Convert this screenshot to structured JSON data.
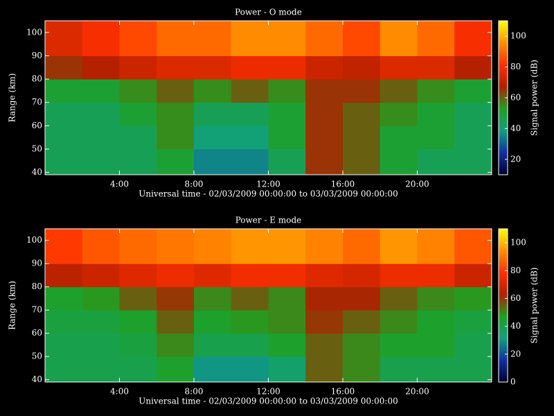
{
  "chart_data": [
    {
      "type": "heatmap",
      "title": "Power - O mode",
      "xlabel": "Universal time - 02/03/2009 00:00:00 to 03/03/2009 00:00:00",
      "ylabel": "Range (km)",
      "colorbar_label": "Signal power (dB)",
      "x_bins": [
        0,
        2,
        4,
        6,
        8,
        10,
        12,
        14,
        16,
        18,
        20,
        22,
        24
      ],
      "y_bins": [
        39,
        50,
        60,
        70,
        80,
        90,
        105
      ],
      "values": [
        [
          45,
          45,
          45,
          50,
          35,
          35,
          45,
          65,
          60,
          50,
          45,
          45
        ],
        [
          45,
          45,
          45,
          55,
          40,
          40,
          50,
          65,
          60,
          50,
          50,
          45
        ],
        [
          45,
          45,
          50,
          55,
          45,
          45,
          50,
          65,
          60,
          55,
          50,
          45
        ],
        [
          50,
          50,
          55,
          60,
          55,
          60,
          55,
          65,
          65,
          60,
          55,
          50
        ],
        [
          65,
          68,
          72,
          75,
          75,
          78,
          78,
          72,
          70,
          75,
          75,
          68
        ],
        [
          75,
          80,
          85,
          90,
          90,
          95,
          95,
          90,
          85,
          95,
          90,
          80
        ]
      ],
      "xlim": [
        0,
        24
      ],
      "xticks": [
        {
          "value": 4,
          "label": "4:00"
        },
        {
          "value": 8,
          "label": "8:00"
        },
        {
          "value": 12,
          "label": "12:00"
        },
        {
          "value": 16,
          "label": "16:00"
        },
        {
          "value": 20,
          "label": "20:00"
        }
      ],
      "ylim": [
        39,
        105
      ],
      "yticks": [
        40,
        50,
        60,
        70,
        80,
        90,
        100
      ],
      "clim": [
        10,
        110
      ],
      "cticks": [
        20,
        40,
        60,
        80,
        100
      ],
      "colormap": [
        "#000030",
        "#1030a0",
        "#10a080",
        "#20a020",
        "#b02000",
        "#ff3000",
        "#ff9000",
        "#ffff00"
      ]
    },
    {
      "type": "heatmap",
      "title": "Power - E mode",
      "xlabel": "Universal time - 02/03/2009 00:00:00 to 03/03/2009 00:00:00",
      "ylabel": "Range (km)",
      "colorbar_label": "Signal power (dB)",
      "x_bins": [
        0,
        2,
        4,
        6,
        8,
        10,
        12,
        14,
        16,
        18,
        20,
        22,
        24
      ],
      "y_bins": [
        39,
        50,
        60,
        70,
        80,
        90,
        105
      ],
      "values": [
        [
          40,
          40,
          40,
          45,
          30,
          30,
          35,
          55,
          50,
          40,
          40,
          40
        ],
        [
          40,
          40,
          42,
          50,
          40,
          40,
          45,
          55,
          50,
          45,
          45,
          40
        ],
        [
          42,
          42,
          45,
          55,
          45,
          48,
          50,
          60,
          55,
          50,
          45,
          42
        ],
        [
          45,
          48,
          55,
          60,
          50,
          55,
          50,
          62,
          62,
          55,
          50,
          48
        ],
        [
          65,
          68,
          72,
          75,
          72,
          76,
          76,
          72,
          70,
          75,
          75,
          68
        ],
        [
          80,
          85,
          88,
          90,
          92,
          95,
          95,
          92,
          88,
          95,
          92,
          85
        ]
      ],
      "xlim": [
        0,
        24
      ],
      "xticks": [
        {
          "value": 4,
          "label": "4:00"
        },
        {
          "value": 8,
          "label": "8:00"
        },
        {
          "value": 12,
          "label": "12:00"
        },
        {
          "value": 16,
          "label": "16:00"
        },
        {
          "value": 20,
          "label": "20:00"
        }
      ],
      "ylim": [
        39,
        105
      ],
      "yticks": [
        40,
        50,
        60,
        70,
        80,
        90,
        100
      ],
      "clim": [
        0,
        110
      ],
      "cticks": [
        0,
        20,
        40,
        60,
        80,
        100
      ],
      "colormap": [
        "#000030",
        "#1030a0",
        "#10a080",
        "#20a020",
        "#b02000",
        "#ff3000",
        "#ff9000",
        "#ffff00"
      ]
    }
  ]
}
